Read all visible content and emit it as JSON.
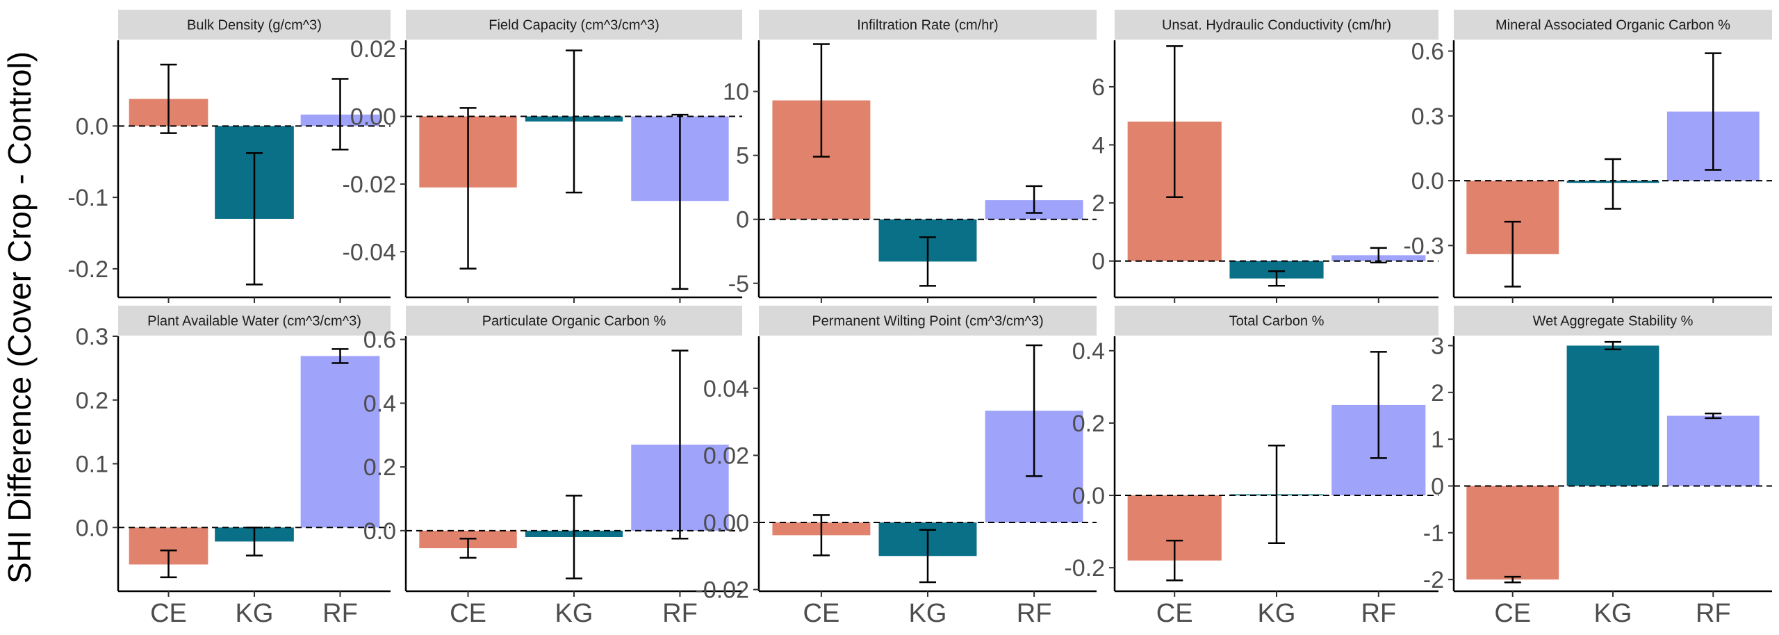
{
  "figure": {
    "ylabel": "SHI Difference (Cover Crop - Control)"
  },
  "colors": {
    "CE": "#E0826C",
    "KG": "#0A7088",
    "RF": "#9FA3FA",
    "strip": "#D9D9D9",
    "axis": "#000000",
    "tick_label": "#4d4d4d"
  },
  "chart_data": [
    {
      "type": "bar",
      "title": "Bulk Density (g/cm^3)",
      "categories": [
        "CE",
        "KG",
        "RF"
      ],
      "values": [
        0.038,
        -0.13,
        0.016
      ],
      "error_low": [
        -0.01,
        -0.222,
        -0.033
      ],
      "error_high": [
        0.086,
        -0.038,
        0.066
      ],
      "ylim": [
        -0.24,
        0.12
      ],
      "yticks": [
        -0.2,
        -0.1,
        0.0
      ],
      "ytick_labels": [
        "-0.2",
        "-0.1",
        "0.0"
      ],
      "reference_line": 0
    },
    {
      "type": "bar",
      "title": "Field Capacity  (cm^3/cm^3)",
      "categories": [
        "CE",
        "KG",
        "RF"
      ],
      "values": [
        -0.021,
        -0.0015,
        -0.025
      ],
      "error_low": [
        -0.045,
        -0.0225,
        -0.051
      ],
      "error_high": [
        0.0025,
        0.0195,
        0.0005
      ],
      "ylim": [
        -0.0535,
        0.0225
      ],
      "yticks": [
        -0.04,
        -0.02,
        0.0,
        0.02
      ],
      "ytick_labels": [
        "-0.04",
        "-0.02",
        "0.00",
        "0.02"
      ],
      "reference_line": 0
    },
    {
      "type": "bar",
      "title": "Infiltration Rate (cm/hr)",
      "categories": [
        "CE",
        "KG",
        "RF"
      ],
      "values": [
        9.3,
        -3.3,
        1.5
      ],
      "error_low": [
        4.9,
        -5.2,
        0.5
      ],
      "error_high": [
        13.7,
        -1.4,
        2.6
      ],
      "ylim": [
        -6.1,
        14.0
      ],
      "yticks": [
        -5,
        0,
        5,
        10
      ],
      "ytick_labels": [
        "-5",
        "0",
        "5",
        "10"
      ],
      "reference_line": 0
    },
    {
      "type": "bar",
      "title": "Unsat. Hydraulic Conductivity (cm/hr)",
      "categories": [
        "CE",
        "KG",
        "RF"
      ],
      "values": [
        4.8,
        -0.6,
        0.2
      ],
      "error_low": [
        2.2,
        -0.85,
        -0.05
      ],
      "error_high": [
        7.4,
        -0.35,
        0.45
      ],
      "ylim": [
        -1.25,
        7.6
      ],
      "yticks": [
        0,
        2,
        4,
        6
      ],
      "ytick_labels": [
        "0",
        "2",
        "4",
        "6"
      ],
      "reference_line": 0
    },
    {
      "type": "bar",
      "title": "Mineral Associated Organic Carbon %",
      "categories": [
        "CE",
        "KG",
        "RF"
      ],
      "values": [
        -0.34,
        -0.01,
        0.32
      ],
      "error_low": [
        -0.49,
        -0.13,
        0.05
      ],
      "error_high": [
        -0.19,
        0.1,
        0.59
      ],
      "ylim": [
        -0.54,
        0.65
      ],
      "yticks": [
        -0.3,
        0.0,
        0.3,
        0.6
      ],
      "ytick_labels": [
        "-0.3",
        "0.0",
        "0.3",
        "0.6"
      ],
      "reference_line": 0
    },
    {
      "type": "bar",
      "title": "Plant Available Water (cm^3/cm^3)",
      "categories": [
        "CE",
        "KG",
        "RF"
      ],
      "values": [
        -0.058,
        -0.022,
        0.269
      ],
      "error_low": [
        -0.078,
        -0.044,
        0.258
      ],
      "error_high": [
        -0.036,
        0.0,
        0.28
      ],
      "ylim": [
        -0.1,
        0.3
      ],
      "yticks": [
        0.0,
        0.1,
        0.2,
        0.3
      ],
      "ytick_labels": [
        "0.0",
        "0.1",
        "0.2",
        "0.3"
      ],
      "reference_line": 0
    },
    {
      "type": "bar",
      "title": "Particulate Organic Carbon %",
      "categories": [
        "CE",
        "KG",
        "RF"
      ],
      "values": [
        -0.055,
        -0.02,
        0.27
      ],
      "error_low": [
        -0.085,
        -0.15,
        -0.025
      ],
      "error_high": [
        -0.025,
        0.11,
        0.565
      ],
      "ylim": [
        -0.19,
        0.61
      ],
      "yticks": [
        0.0,
        0.2,
        0.4,
        0.6
      ],
      "ytick_labels": [
        "0.0",
        "0.2",
        "0.4",
        "0.6"
      ],
      "reference_line": 0
    },
    {
      "type": "bar",
      "title": "Permanent Wilting Point (cm^3/cm^3)",
      "categories": [
        "CE",
        "KG",
        "RF"
      ],
      "values": [
        -0.0038,
        -0.01,
        0.0333
      ],
      "error_low": [
        -0.0098,
        -0.0178,
        0.0138
      ],
      "error_high": [
        0.0022,
        -0.0022,
        0.0528
      ],
      "ylim": [
        -0.0205,
        0.0555
      ],
      "yticks": [
        -0.02,
        0.0,
        0.02,
        0.04
      ],
      "ytick_labels": [
        "-0.02",
        "0.00",
        "0.02",
        "0.04"
      ],
      "reference_line": 0
    },
    {
      "type": "bar",
      "title": "Total Carbon %",
      "categories": [
        "CE",
        "KG",
        "RF"
      ],
      "values": [
        -0.18,
        0.003,
        0.25
      ],
      "error_low": [
        -0.235,
        -0.132,
        0.103
      ],
      "error_high": [
        -0.125,
        0.138,
        0.397
      ],
      "ylim": [
        -0.265,
        0.44
      ],
      "yticks": [
        -0.2,
        0.0,
        0.2,
        0.4
      ],
      "ytick_labels": [
        "-0.2",
        "0.0",
        "0.2",
        "0.4"
      ],
      "reference_line": 0
    },
    {
      "type": "bar",
      "title": "Wet Aggregate Stability %",
      "categories": [
        "CE",
        "KG",
        "RF"
      ],
      "values": [
        -2.0,
        3.0,
        1.5
      ],
      "error_low": [
        -2.06,
        2.92,
        1.45
      ],
      "error_high": [
        -1.94,
        3.08,
        1.55
      ],
      "ylim": [
        -2.25,
        3.2
      ],
      "yticks": [
        -2,
        -1,
        0,
        1,
        2,
        3
      ],
      "ytick_labels": [
        "-2",
        "-1",
        "0",
        "1",
        "2",
        "3"
      ],
      "reference_line": 0
    }
  ]
}
